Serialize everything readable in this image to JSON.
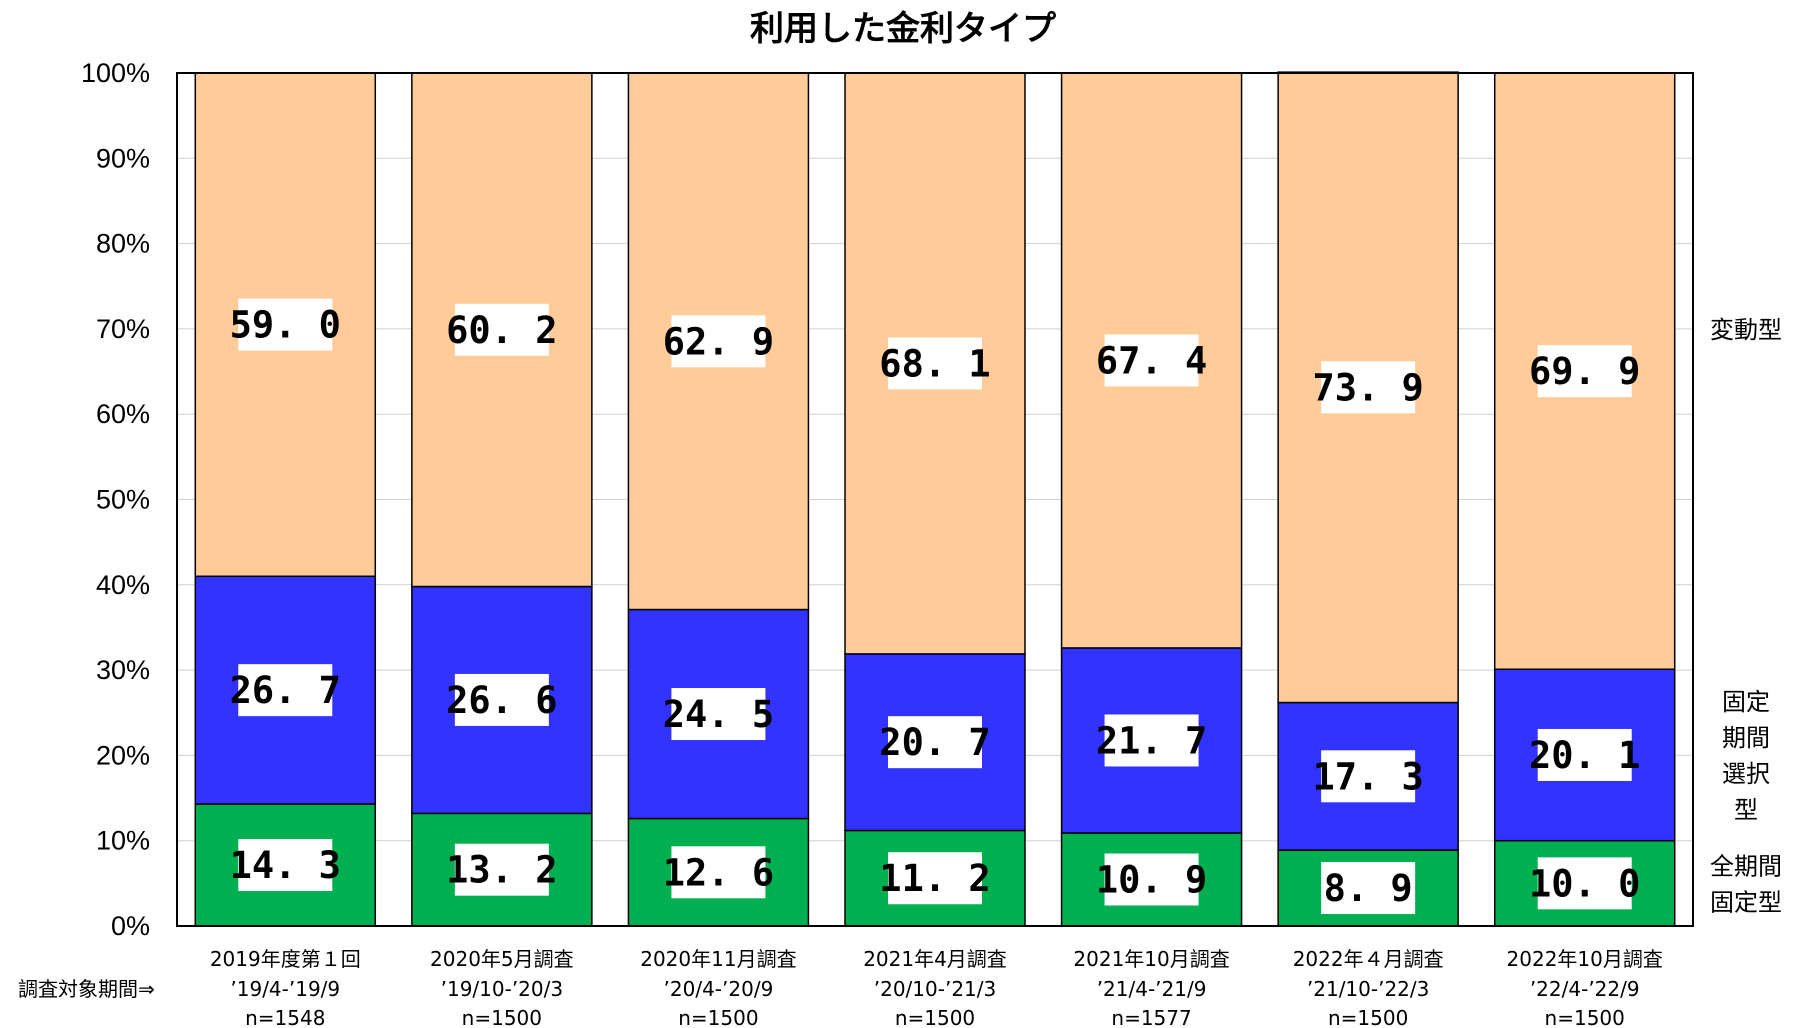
{
  "chart_data": {
    "type": "bar",
    "stacked": true,
    "title": "利用した金利タイプ",
    "categories": [
      "2019年度第１回",
      "2020年5月調査",
      "2020年11月調査",
      "2021年4月調査",
      "2021年10月調査",
      "2022年４月調査",
      "2022年10月調査"
    ],
    "periods": [
      "’19/4-’19/9",
      "’19/10-’20/3",
      "’20/4-’20/9",
      "’20/10-’21/3",
      "’21/4-’21/9",
      "’21/10-’22/3",
      "’22/4-’22/9"
    ],
    "period_label": "調査対象期間⇒",
    "sample_sizes": [
      "n=1548",
      "n=1500",
      "n=1500",
      "n=1500",
      "n=1577",
      "n=1500",
      "n=1500"
    ],
    "series": [
      {
        "name": "全期間固定型",
        "legend_lines": [
          "全期間",
          "固定型"
        ],
        "color": "#00b050",
        "values": [
          14.3,
          13.2,
          12.6,
          11.2,
          10.9,
          8.9,
          10.0
        ],
        "labels": [
          "14. 3",
          "13. 2",
          "12. 6",
          "11. 2",
          "10. 9",
          "8. 9",
          "10. 0"
        ]
      },
      {
        "name": "固定期間選択型",
        "legend_lines": [
          "固定",
          "期間",
          "選択",
          "型"
        ],
        "color": "#3333ff",
        "values": [
          26.7,
          26.6,
          24.5,
          20.7,
          21.7,
          17.3,
          20.1
        ],
        "labels": [
          "26. 7",
          "26. 6",
          "24. 5",
          "20. 7",
          "21. 7",
          "17. 3",
          "20. 1"
        ]
      },
      {
        "name": "変動型",
        "legend_lines": [
          "変動型"
        ],
        "color": "#ffcc99",
        "values": [
          59.0,
          60.2,
          62.9,
          68.1,
          67.4,
          73.9,
          69.9
        ],
        "labels": [
          "59. 0",
          "60. 2",
          "62. 9",
          "68. 1",
          "67. 4",
          "73. 9",
          "69. 9"
        ]
      }
    ],
    "yticks": [
      "0%",
      "10%",
      "20%",
      "30%",
      "40%",
      "50%",
      "60%",
      "70%",
      "80%",
      "90%",
      "100%"
    ],
    "ylim": [
      0,
      100
    ],
    "xlabel": "",
    "ylabel": "",
    "grid": true,
    "legend": "right"
  }
}
